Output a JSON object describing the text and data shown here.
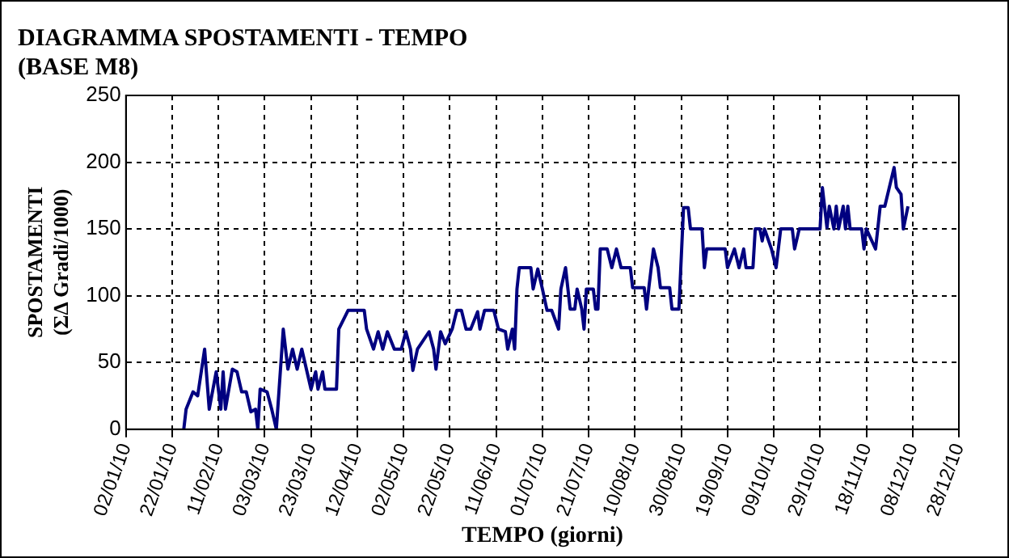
{
  "chart_data": {
    "type": "line",
    "title": "DIAGRAMMA SPOSTAMENTI - TEMPO\n(BASE M8)",
    "xlabel": "TEMPO (giorni)",
    "ylabel": "SPOSTAMENTI\n(ΣΔ Gradi/1000)",
    "series": [
      {
        "color": "#000080",
        "x": [
          "2010-01-27",
          "2010-01-28",
          "2010-01-31",
          "2010-02-02",
          "2010-02-05",
          "2010-02-07",
          "2010-02-10",
          "2010-02-12",
          "2010-02-13",
          "2010-02-14",
          "2010-02-17",
          "2010-02-19",
          "2010-02-21",
          "2010-02-23",
          "2010-02-25",
          "2010-02-27",
          "2010-02-28",
          "2010-03-01",
          "2010-03-04",
          "2010-03-06",
          "2010-03-08",
          "2010-03-11",
          "2010-03-13",
          "2010-03-15",
          "2010-03-17",
          "2010-03-19",
          "2010-03-21",
          "2010-03-23",
          "2010-03-25",
          "2010-03-26",
          "2010-03-28",
          "2010-03-29",
          "2010-04-03",
          "2010-04-04",
          "2010-04-08",
          "2010-04-15",
          "2010-04-16",
          "2010-04-19",
          "2010-04-21",
          "2010-04-23",
          "2010-04-25",
          "2010-04-28",
          "2010-05-01",
          "2010-05-03",
          "2010-05-05",
          "2010-05-06",
          "2010-05-08",
          "2010-05-13",
          "2010-05-15",
          "2010-05-16",
          "2010-05-18",
          "2010-05-20",
          "2010-05-23",
          "2010-05-25",
          "2010-05-27",
          "2010-05-29",
          "2010-05-31",
          "2010-06-03",
          "2010-06-04",
          "2010-06-06",
          "2010-06-10",
          "2010-06-12",
          "2010-06-15",
          "2010-06-16",
          "2010-06-18",
          "2010-06-19",
          "2010-06-20",
          "2010-06-21",
          "2010-06-26",
          "2010-06-27",
          "2010-06-29",
          "2010-07-01",
          "2010-07-03",
          "2010-07-05",
          "2010-07-08",
          "2010-07-09",
          "2010-07-11",
          "2010-07-13",
          "2010-07-15",
          "2010-07-16",
          "2010-07-18",
          "2010-07-19",
          "2010-07-20",
          "2010-07-23",
          "2010-07-24",
          "2010-07-25",
          "2010-07-26",
          "2010-07-29",
          "2010-07-31",
          "2010-08-02",
          "2010-08-04",
          "2010-08-08",
          "2010-08-09",
          "2010-08-14",
          "2010-08-15",
          "2010-08-16",
          "2010-08-18",
          "2010-08-20",
          "2010-08-21",
          "2010-08-25",
          "2010-08-26",
          "2010-08-29",
          "2010-08-31",
          "2010-09-02",
          "2010-09-03",
          "2010-09-08",
          "2010-09-09",
          "2010-09-10",
          "2010-09-18",
          "2010-09-19",
          "2010-09-22",
          "2010-09-24",
          "2010-09-26",
          "2010-09-27",
          "2010-09-30",
          "2010-10-01",
          "2010-10-03",
          "2010-10-04",
          "2010-10-05",
          "2010-10-08",
          "2010-10-10",
          "2010-10-12",
          "2010-10-17",
          "2010-10-18",
          "2010-10-20",
          "2010-10-29",
          "2010-10-30",
          "2010-11-01",
          "2010-11-02",
          "2010-11-04",
          "2010-11-05",
          "2010-11-06",
          "2010-11-08",
          "2010-11-09",
          "2010-11-10",
          "2010-11-11",
          "2010-11-16",
          "2010-11-17",
          "2010-11-18",
          "2010-11-22",
          "2010-11-24",
          "2010-11-26",
          "2010-11-30",
          "2010-12-01",
          "2010-12-03",
          "2010-12-04",
          "2010-12-06"
        ],
        "values": [
          0,
          15,
          28,
          25,
          60,
          15,
          43,
          15,
          43,
          15,
          45,
          43,
          28,
          28,
          13,
          15,
          0,
          30,
          28,
          15,
          0,
          75,
          45,
          60,
          45,
          60,
          45,
          30,
          43,
          30,
          43,
          30,
          30,
          75,
          89,
          89,
          75,
          60,
          73,
          60,
          73,
          60,
          60,
          73,
          60,
          44,
          60,
          73,
          60,
          45,
          73,
          64,
          75,
          89,
          89,
          75,
          75,
          88,
          75,
          89,
          89,
          75,
          73,
          60,
          75,
          60,
          105,
          121,
          121,
          105,
          120,
          105,
          89,
          89,
          75,
          105,
          121,
          90,
          90,
          105,
          90,
          75,
          105,
          105,
          90,
          90,
          135,
          135,
          121,
          135,
          121,
          121,
          106,
          106,
          90,
          106,
          135,
          121,
          106,
          106,
          90,
          90,
          166,
          166,
          150,
          150,
          121,
          135,
          135,
          121,
          135,
          121,
          135,
          121,
          121,
          150,
          150,
          141,
          150,
          135,
          121,
          150,
          150,
          135,
          150,
          150,
          181,
          151,
          167,
          150,
          167,
          150,
          167,
          150,
          167,
          150,
          150,
          135,
          150,
          135,
          167,
          167,
          196,
          181,
          176,
          150,
          167
        ]
      }
    ],
    "xlim": [
      "2010-01-02",
      "2010-12-28"
    ],
    "xticks": [
      {
        "value": "2010-01-02",
        "label": "02/01/10"
      },
      {
        "value": "2010-01-22",
        "label": "22/01/10"
      },
      {
        "value": "2010-02-11",
        "label": "11/02/10"
      },
      {
        "value": "2010-03-03",
        "label": "03/03/10"
      },
      {
        "value": "2010-03-23",
        "label": "23/03/10"
      },
      {
        "value": "2010-04-12",
        "label": "12/04/10"
      },
      {
        "value": "2010-05-02",
        "label": "02/05/10"
      },
      {
        "value": "2010-05-22",
        "label": "22/05/10"
      },
      {
        "value": "2010-06-11",
        "label": "11/06/10"
      },
      {
        "value": "2010-07-01",
        "label": "01/07/10"
      },
      {
        "value": "2010-07-21",
        "label": "21/07/10"
      },
      {
        "value": "2010-08-10",
        "label": "10/08/10"
      },
      {
        "value": "2010-08-30",
        "label": "30/08/10"
      },
      {
        "value": "2010-09-19",
        "label": "19/09/10"
      },
      {
        "value": "2010-10-09",
        "label": "09/10/10"
      },
      {
        "value": "2010-10-29",
        "label": "29/10/10"
      },
      {
        "value": "2010-11-18",
        "label": "18/11/10"
      },
      {
        "value": "2010-12-08",
        "label": "08/12/10"
      },
      {
        "value": "2010-12-28",
        "label": "28/12/10"
      }
    ],
    "ylim": [
      0,
      250
    ],
    "yticks": [
      0,
      50,
      100,
      150,
      200,
      250
    ],
    "grid": true,
    "line_style": "solid",
    "marker": "none"
  }
}
